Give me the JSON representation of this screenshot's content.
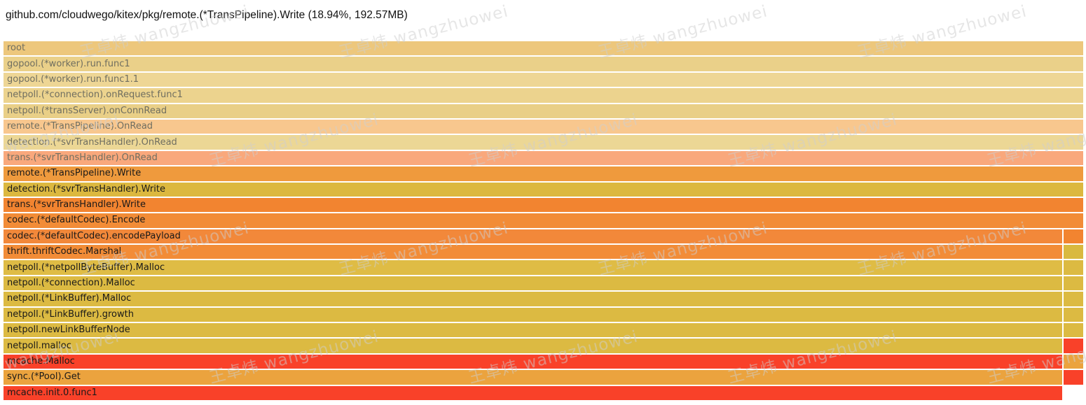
{
  "title": "github.com/cloudwego/kitex/pkg/remote.(*TransPipeline).Write (18.94%, 192.57MB)",
  "watermark": {
    "text": "王卓炜 wangzhuowei"
  },
  "colors": {
    "background": "#ffffff",
    "separator": "#ffffff",
    "dim_text": "#6f6e60",
    "text": "#191919"
  },
  "chart_data": {
    "type": "flamegraph",
    "orientation": "icicle-top-down",
    "title": "github.com/cloudwego/kitex/pkg/remote.(*TransPipeline).Write (18.94%, 192.57MB)",
    "selected_frame": "remote.(*TransPipeline).Write",
    "selected_percent": "18.94%",
    "selected_size": "192.57MB",
    "legend_position": "none",
    "grid": false,
    "frames": [
      {
        "depth": 1,
        "label": "root",
        "color": "#edc77c",
        "dim": true,
        "right": null
      },
      {
        "depth": 2,
        "label": "gopool.(*worker).run.func1",
        "color": "#ead089",
        "dim": true,
        "right": null
      },
      {
        "depth": 3,
        "label": "gopool.(*worker).run.func1.1",
        "color": "#eed695",
        "dim": true,
        "right": null
      },
      {
        "depth": 4,
        "label": "netpoll.(*connection).onRequest.func1",
        "color": "#ecd38e",
        "dim": true,
        "right": null
      },
      {
        "depth": 5,
        "label": "netpoll.(*transServer).onConnRead",
        "color": "#e9cf87",
        "dim": true,
        "right": null
      },
      {
        "depth": 6,
        "label": "remote.(*TransPipeline).OnRead",
        "color": "#f8c78e",
        "dim": true,
        "right": null
      },
      {
        "depth": 7,
        "label": "detection.(*svrTransHandler).OnRead",
        "color": "#ecd795",
        "dim": true,
        "right": null
      },
      {
        "depth": 8,
        "label": "trans.(*svrTransHandler).OnRead",
        "color": "#f9a87c",
        "dim": true,
        "right": null
      },
      {
        "depth": 9,
        "label": "remote.(*TransPipeline).Write",
        "color": "#ef9a3d",
        "dim": false,
        "right": null
      },
      {
        "depth": 10,
        "label": "detection.(*svrTransHandler).Write",
        "color": "#dcb83f",
        "dim": false,
        "right": null
      },
      {
        "depth": 11,
        "label": "trans.(*svrTransHandler).Write",
        "color": "#f28430",
        "dim": false,
        "right": null
      },
      {
        "depth": 12,
        "label": "codec.(*defaultCodec).Encode",
        "color": "#f28c37",
        "dim": false,
        "right": null
      },
      {
        "depth": 13,
        "label": "codec.(*defaultCodec).encodePayload",
        "color": "#f2883a",
        "dim": false,
        "right": "#f28430"
      },
      {
        "depth": 14,
        "label": "thrift.thriftCodec.Marshal",
        "color": "#f28c37",
        "dim": false,
        "right": "#d9b93f"
      },
      {
        "depth": 15,
        "label": "netpoll.(*netpollByteBuffer).Malloc",
        "color": "#dfbc45",
        "dim": false,
        "right": "#dcba42"
      },
      {
        "depth": 16,
        "label": "netpoll.(*connection).Malloc",
        "color": "#dcba42",
        "dim": false,
        "right": "#dcba42"
      },
      {
        "depth": 17,
        "label": "netpoll.(*LinkBuffer).Malloc",
        "color": "#dcba42",
        "dim": false,
        "right": "#dcba42"
      },
      {
        "depth": 18,
        "label": "netpoll.(*LinkBuffer).growth",
        "color": "#dcba42",
        "dim": false,
        "right": "#dcba42"
      },
      {
        "depth": 19,
        "label": "netpoll.newLinkBufferNode",
        "color": "#dcba42",
        "dim": false,
        "right": "#dcba42"
      },
      {
        "depth": 20,
        "label": "netpoll.malloc",
        "color": "#dcba42",
        "dim": false,
        "right": "#f94129"
      },
      {
        "depth": 21,
        "label": "mcache.Malloc",
        "color": "#f94129",
        "dim": false,
        "right": "#eba33e"
      },
      {
        "depth": 22,
        "label": "sync.(*Pool).Get",
        "color": "#eba33e",
        "dim": false,
        "right": "#f94129"
      },
      {
        "depth": 23,
        "label": "mcache.init.0.func1",
        "color": "#f94129",
        "dim": false,
        "right": "empty"
      }
    ]
  }
}
